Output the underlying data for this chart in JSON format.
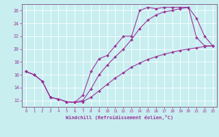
{
  "xlabel": "Windchill (Refroidissement éolien,°C)",
  "bg_color": "#c8eef0",
  "line_color": "#993399",
  "grid_color": "#ffffff",
  "axis_color": "#7b4f7b",
  "text_color": "#993399",
  "xlim": [
    -0.5,
    23.5
  ],
  "ylim": [
    11.0,
    27.0
  ],
  "xticks": [
    0,
    1,
    2,
    3,
    4,
    5,
    6,
    7,
    8,
    9,
    10,
    11,
    12,
    13,
    14,
    15,
    16,
    17,
    18,
    19,
    20,
    21,
    22,
    23
  ],
  "yticks": [
    12,
    14,
    16,
    18,
    20,
    22,
    24,
    26
  ],
  "line1_x": [
    0,
    1,
    2,
    3,
    4,
    5,
    6,
    7,
    8,
    9,
    10,
    11,
    12,
    13,
    14,
    15,
    16,
    17,
    18,
    19,
    20,
    21,
    22,
    23
  ],
  "line1_y": [
    16.5,
    16.0,
    15.0,
    12.5,
    12.2,
    11.8,
    11.7,
    12.8,
    16.5,
    18.5,
    19.0,
    20.5,
    22.0,
    22.0,
    26.0,
    26.5,
    26.3,
    26.5,
    26.5,
    26.5,
    26.5,
    21.8,
    20.5,
    20.5
  ],
  "line2_x": [
    0,
    1,
    2,
    3,
    4,
    5,
    6,
    7,
    8,
    9,
    10,
    11,
    12,
    13,
    14,
    15,
    16,
    17,
    18,
    19,
    20,
    21,
    22,
    23
  ],
  "line2_y": [
    16.5,
    16.0,
    15.0,
    12.5,
    12.2,
    11.8,
    11.7,
    12.0,
    13.8,
    16.0,
    17.5,
    18.8,
    20.0,
    21.5,
    23.2,
    24.5,
    25.3,
    25.8,
    26.0,
    26.3,
    26.5,
    24.8,
    22.0,
    20.5
  ],
  "line3_x": [
    0,
    1,
    2,
    3,
    4,
    5,
    6,
    7,
    8,
    9,
    10,
    11,
    12,
    13,
    14,
    15,
    16,
    17,
    18,
    19,
    20,
    21,
    22,
    23
  ],
  "line3_y": [
    16.5,
    16.0,
    15.0,
    12.5,
    12.2,
    11.8,
    11.7,
    11.8,
    12.5,
    13.5,
    14.5,
    15.5,
    16.3,
    17.2,
    17.8,
    18.4,
    18.8,
    19.2,
    19.5,
    19.8,
    20.0,
    20.2,
    20.4,
    20.5
  ],
  "figsize": [
    3.2,
    2.0
  ],
  "dpi": 100
}
